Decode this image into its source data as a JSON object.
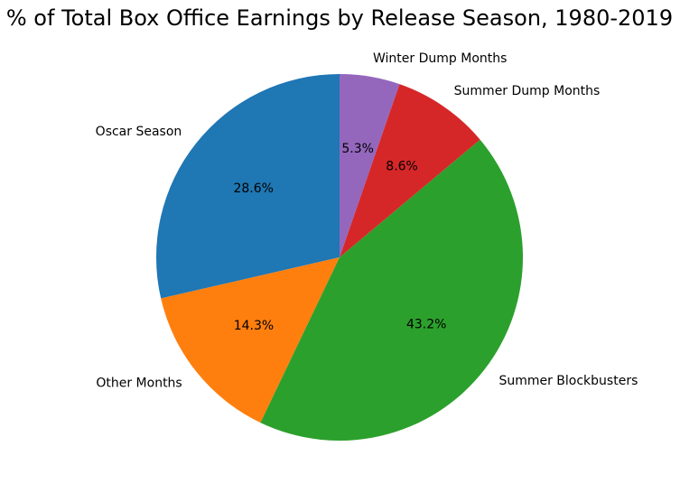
{
  "chart_data": {
    "type": "pie",
    "title": "% of Total Box Office Earnings by Release Season, 1980-2019",
    "slices": [
      {
        "label": "Oscar Season",
        "value": 28.6,
        "pct_label": "28.6%",
        "color": "#1f77b4"
      },
      {
        "label": "Other Months",
        "value": 14.3,
        "pct_label": "14.3%",
        "color": "#ff7f0e"
      },
      {
        "label": "Summer Blockbusters",
        "value": 43.2,
        "pct_label": "43.2%",
        "color": "#2ca02c"
      },
      {
        "label": "Summer Dump Months",
        "value": 8.6,
        "pct_label": "8.6%",
        "color": "#d62728"
      },
      {
        "label": "Winter Dump Months",
        "value": 5.3,
        "pct_label": "5.3%",
        "color": "#9467bd"
      }
    ],
    "start_angle_deg": 90,
    "direction": "counterclockwise"
  }
}
